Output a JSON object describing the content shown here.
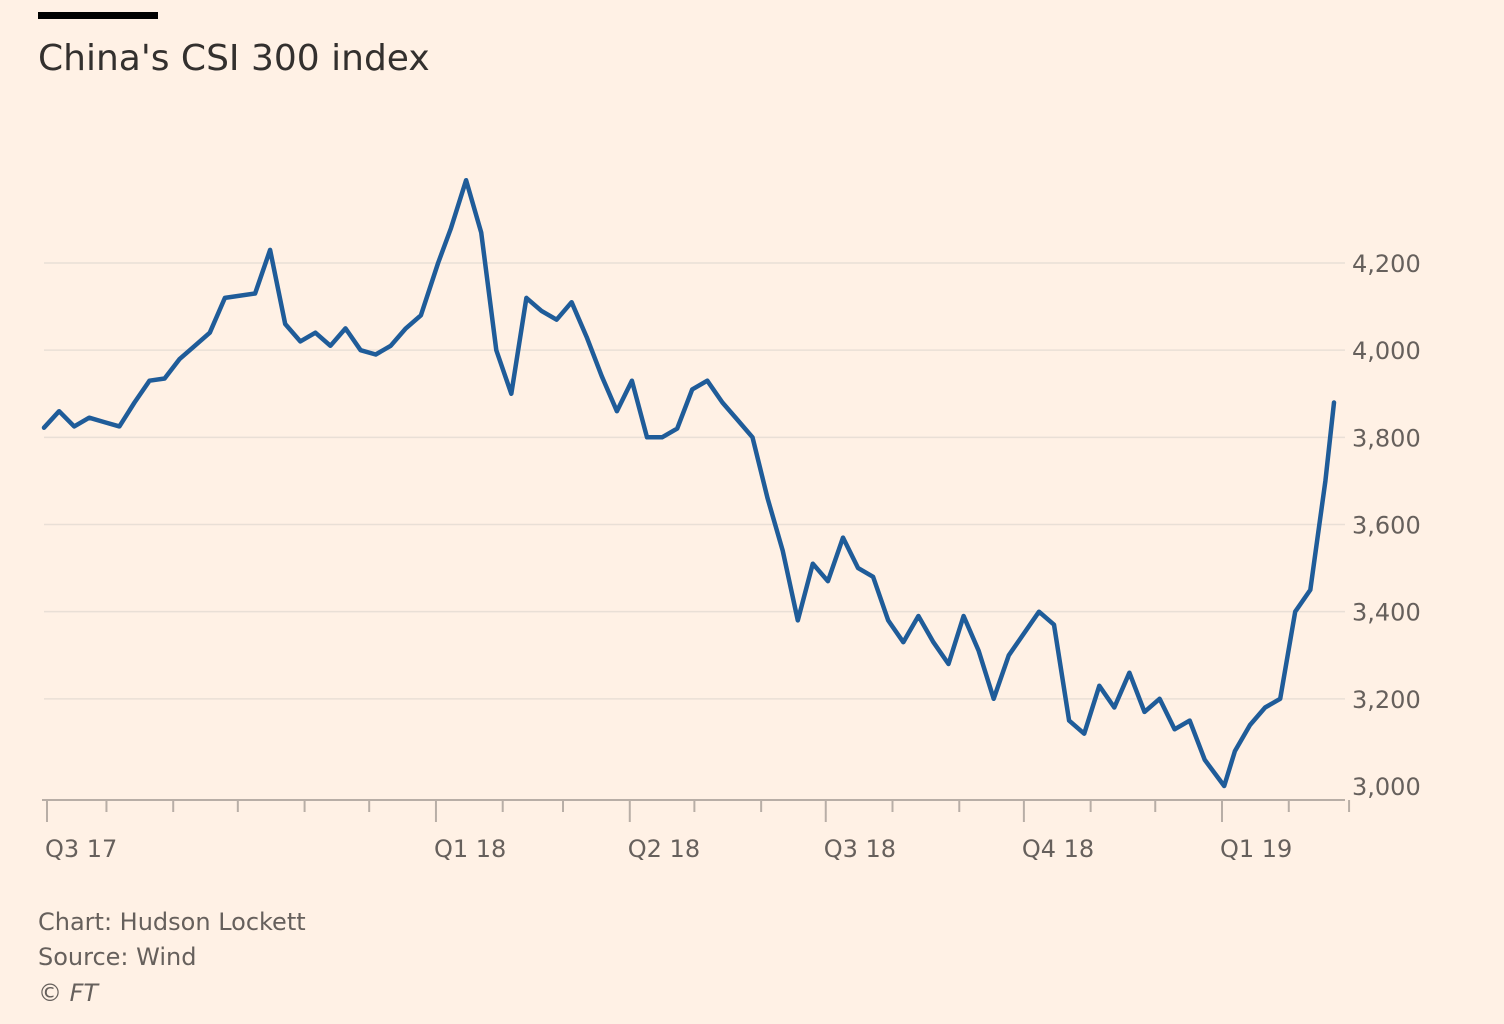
{
  "title": "China's CSI 300 index",
  "footer": {
    "credit": "Chart: Hudson Lockett",
    "source": "Source: Wind",
    "copyright": "© FT"
  },
  "colors": {
    "background": "#fff1e5",
    "line": "#1f5c99",
    "grid": "#e9dfd6",
    "axis": "#b8aea6",
    "text": "#66605c"
  },
  "chart_data": {
    "type": "line",
    "title": "China's CSI 300 index",
    "xlabel": "",
    "ylabel": "",
    "x_start": "2017-07-03",
    "x_end": "2019-02-22",
    "ylim": [
      2960,
      4400
    ],
    "yticks": [
      3000,
      3200,
      3400,
      3600,
      3800,
      4000,
      4200
    ],
    "ytick_labels": [
      "3,000",
      "3,200",
      "3,400",
      "3,600",
      "3,800",
      "4,000",
      "4,200"
    ],
    "y_axis_side": "right",
    "grid": true,
    "xticks": [
      {
        "date": "2017-07-01",
        "label": "Q3 17",
        "major": true
      },
      {
        "date": "2017-08-01",
        "label": "",
        "major": false
      },
      {
        "date": "2017-09-01",
        "label": "",
        "major": false
      },
      {
        "date": "2017-10-01",
        "label": "",
        "major": false
      },
      {
        "date": "2017-11-01",
        "label": "",
        "major": false
      },
      {
        "date": "2017-12-01",
        "label": "",
        "major": false
      },
      {
        "date": "2018-01-01",
        "label": "Q1 18",
        "major": true
      },
      {
        "date": "2018-02-01",
        "label": "",
        "major": false
      },
      {
        "date": "2018-03-01",
        "label": "",
        "major": false
      },
      {
        "date": "2018-04-01",
        "label": "Q2 18",
        "major": true
      },
      {
        "date": "2018-05-01",
        "label": "",
        "major": false
      },
      {
        "date": "2018-06-01",
        "label": "",
        "major": false
      },
      {
        "date": "2018-07-01",
        "label": "Q3 18",
        "major": true
      },
      {
        "date": "2018-08-01",
        "label": "",
        "major": false
      },
      {
        "date": "2018-09-01",
        "label": "",
        "major": false
      },
      {
        "date": "2018-10-01",
        "label": "Q4 18",
        "major": true
      },
      {
        "date": "2018-11-01",
        "label": "",
        "major": false
      },
      {
        "date": "2018-12-01",
        "label": "",
        "major": false
      },
      {
        "date": "2019-01-01",
        "label": "Q1 19",
        "major": true
      },
      {
        "date": "2019-02-01",
        "label": "",
        "major": false
      },
      {
        "date": "2019-03-01",
        "label": "",
        "major": false
      }
    ],
    "series": [
      {
        "x": [
          "2017-07-03",
          "2017-07-10",
          "2017-07-17",
          "2017-07-24",
          "2017-07-31",
          "2017-08-07",
          "2017-08-14",
          "2017-08-21",
          "2017-08-28",
          "2017-09-04",
          "2017-09-11",
          "2017-09-18",
          "2017-09-25",
          "2017-10-09",
          "2017-10-16",
          "2017-10-23",
          "2017-10-30",
          "2017-11-06",
          "2017-11-13",
          "2017-11-20",
          "2017-11-27",
          "2017-12-04",
          "2017-12-11",
          "2017-12-18",
          "2017-12-25",
          "2018-01-02",
          "2018-01-08",
          "2018-01-15",
          "2018-01-22",
          "2018-01-29",
          "2018-02-05",
          "2018-02-12",
          "2018-02-19",
          "2018-02-26",
          "2018-03-05",
          "2018-03-12",
          "2018-03-19",
          "2018-03-26",
          "2018-04-02",
          "2018-04-09",
          "2018-04-16",
          "2018-04-23",
          "2018-04-30",
          "2018-05-07",
          "2018-05-14",
          "2018-05-21",
          "2018-05-28",
          "2018-06-04",
          "2018-06-11",
          "2018-06-18",
          "2018-06-25",
          "2018-07-02",
          "2018-07-09",
          "2018-07-16",
          "2018-07-23",
          "2018-07-30",
          "2018-08-06",
          "2018-08-13",
          "2018-08-20",
          "2018-08-27",
          "2018-09-03",
          "2018-09-10",
          "2018-09-17",
          "2018-09-24",
          "2018-10-08",
          "2018-10-15",
          "2018-10-22",
          "2018-10-29",
          "2018-11-05",
          "2018-11-12",
          "2018-11-19",
          "2018-11-26",
          "2018-12-03",
          "2018-12-10",
          "2018-12-17",
          "2018-12-24",
          "2019-01-02",
          "2019-01-07",
          "2019-01-14",
          "2019-01-21",
          "2019-01-28",
          "2019-02-04",
          "2019-02-11",
          "2019-02-18",
          "2019-02-22"
        ],
        "values": [
          3822,
          3860,
          3825,
          3845,
          3835,
          3825,
          3880,
          3930,
          3935,
          3980,
          4010,
          4040,
          4120,
          4130,
          4230,
          4060,
          4020,
          4040,
          4010,
          4050,
          4000,
          3990,
          4010,
          4050,
          4080,
          4200,
          4280,
          4390,
          4270,
          4000,
          3900,
          4120,
          4090,
          4070,
          4110,
          4030,
          3940,
          3860,
          3930,
          3800,
          3800,
          3820,
          3910,
          3930,
          3880,
          3840,
          3800,
          3660,
          3540,
          3380,
          3510,
          3470,
          3570,
          3500,
          3480,
          3380,
          3330,
          3390,
          3330,
          3280,
          3390,
          3310,
          3200,
          3300,
          3400,
          3370,
          3150,
          3120,
          3230,
          3180,
          3260,
          3170,
          3200,
          3130,
          3150,
          3060,
          3000,
          3080,
          3140,
          3180,
          3200,
          3400,
          3450,
          3700,
          3880
        ]
      }
    ]
  }
}
